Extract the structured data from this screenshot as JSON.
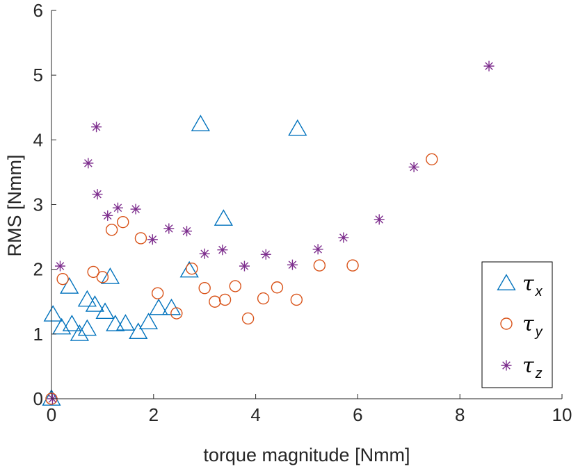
{
  "chart_data": {
    "type": "scatter",
    "xlabel": "torque magnitude [Nmm]",
    "ylabel": "RMS [Nmm]",
    "xlim": [
      0,
      10
    ],
    "ylim": [
      0,
      6
    ],
    "x_ticks": [
      "0",
      "2",
      "4",
      "6",
      "8",
      "10"
    ],
    "y_ticks": [
      "0",
      "1",
      "2",
      "3",
      "4",
      "5",
      "6"
    ],
    "grid": false,
    "legend_position": "bottom-right",
    "series": [
      {
        "name": "τx",
        "symbol": "τ",
        "subscript": "x",
        "marker": "triangle",
        "color": "#0072BD",
        "points": [
          [
            0.0,
            0.0
          ],
          [
            0.03,
            1.3
          ],
          [
            0.2,
            1.1
          ],
          [
            0.35,
            1.73
          ],
          [
            0.4,
            1.15
          ],
          [
            0.55,
            1.0
          ],
          [
            0.7,
            1.08
          ],
          [
            0.7,
            1.53
          ],
          [
            0.85,
            1.45
          ],
          [
            1.05,
            1.34
          ],
          [
            1.15,
            1.88
          ],
          [
            1.25,
            1.15
          ],
          [
            1.45,
            1.16
          ],
          [
            1.7,
            1.03
          ],
          [
            1.9,
            1.18
          ],
          [
            2.1,
            1.4
          ],
          [
            2.35,
            1.4
          ],
          [
            2.7,
            1.98
          ],
          [
            2.92,
            4.24
          ],
          [
            3.37,
            2.78
          ],
          [
            4.82,
            4.17
          ]
        ]
      },
      {
        "name": "τy",
        "symbol": "τ",
        "subscript": "y",
        "marker": "circle",
        "color": "#D95319",
        "points": [
          [
            0.0,
            0.0
          ],
          [
            0.22,
            1.85
          ],
          [
            0.82,
            1.96
          ],
          [
            1.0,
            1.88
          ],
          [
            1.18,
            2.61
          ],
          [
            1.4,
            2.73
          ],
          [
            1.75,
            2.48
          ],
          [
            2.08,
            1.63
          ],
          [
            2.45,
            1.32
          ],
          [
            2.75,
            2.01
          ],
          [
            3.0,
            1.71
          ],
          [
            3.2,
            1.5
          ],
          [
            3.4,
            1.53
          ],
          [
            3.6,
            1.74
          ],
          [
            3.85,
            1.24
          ],
          [
            4.15,
            1.55
          ],
          [
            4.42,
            1.72
          ],
          [
            4.8,
            1.53
          ],
          [
            5.25,
            2.06
          ],
          [
            5.9,
            2.06
          ],
          [
            7.45,
            3.7
          ]
        ]
      },
      {
        "name": "τz",
        "symbol": "τ",
        "subscript": "z",
        "marker": "asterisk",
        "color": "#7E2F8E",
        "points": [
          [
            0.02,
            0.0
          ],
          [
            0.17,
            2.05
          ],
          [
            0.72,
            3.64
          ],
          [
            0.88,
            4.2
          ],
          [
            0.9,
            3.16
          ],
          [
            1.1,
            2.83
          ],
          [
            1.3,
            2.95
          ],
          [
            1.65,
            2.93
          ],
          [
            1.98,
            2.46
          ],
          [
            2.3,
            2.63
          ],
          [
            2.65,
            2.59
          ],
          [
            3.0,
            2.24
          ],
          [
            3.35,
            2.3
          ],
          [
            3.78,
            2.05
          ],
          [
            4.2,
            2.23
          ],
          [
            4.72,
            2.07
          ],
          [
            5.22,
            2.31
          ],
          [
            5.72,
            2.49
          ],
          [
            6.42,
            2.77
          ],
          [
            7.1,
            3.58
          ],
          [
            8.57,
            5.14
          ]
        ]
      }
    ]
  }
}
